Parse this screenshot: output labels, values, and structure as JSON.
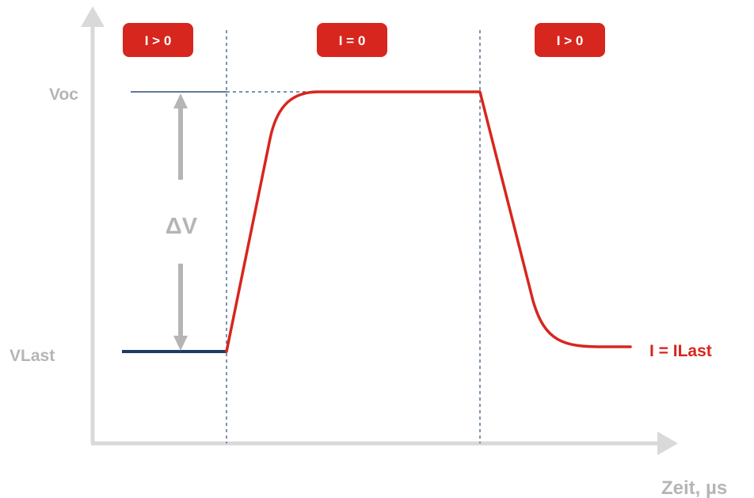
{
  "badges": [
    {
      "label": "I > 0"
    },
    {
      "label": "I = 0"
    },
    {
      "label": "I > 0"
    }
  ],
  "labels": {
    "voc": "Voc",
    "vlast": "VLast",
    "delta_v": "ΔV",
    "current_load": "I = ILast",
    "x_axis": "Zeit, µs"
  },
  "colors": {
    "axis": "#d9d9d9",
    "signal": "#d7261e",
    "baseline": "#1f3b63",
    "guide": "#2a4d7a",
    "label_gray": "#b5b5b5",
    "badge_bg": "#d7261e"
  }
}
